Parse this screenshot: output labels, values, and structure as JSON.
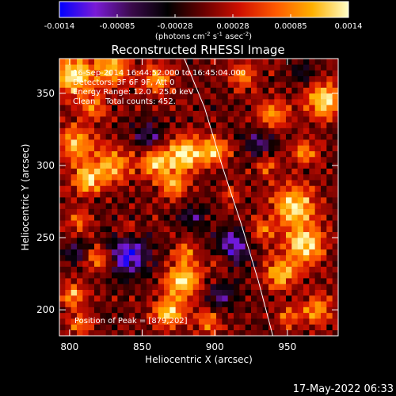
{
  "chart_data": {
    "type": "heatmap",
    "title": "Reconstructed RHESSI Image",
    "xlabel": "Heliocentric X (arcsec)",
    "ylabel": "Heliocentric Y (arcsec)",
    "xlim": [
      793,
      985
    ],
    "ylim": [
      182,
      374
    ],
    "xticks": [
      800,
      850,
      900,
      950
    ],
    "yticks": [
      200,
      250,
      300,
      350
    ],
    "colorbar": {
      "min": -0.0014,
      "max": 0.0014,
      "ticks": [
        "-0.0014",
        "-0.00085",
        "-0.00028",
        "0.00028",
        "0.00085",
        "0.0014"
      ],
      "label_parts": [
        "(photons cm",
        "-2",
        " s",
        "-1",
        " asec",
        "-2",
        ")"
      ],
      "colors": [
        "#0000ff",
        "#7a1bd6",
        "#3a0a4a",
        "#000000",
        "#6a0000",
        "#d01000",
        "#ff5a00",
        "#ffb000",
        "#ffffc8"
      ]
    },
    "annotations": [
      "16-Sep-2014 16:44:52.000 to 16:45:04.000",
      "Detectors: 3F 6F 9F, Att 0",
      "Energy Range: 12.0 - 25.0 keV",
      "Clean    Total counts: 452.",
      "Position of Peak = [879,202]"
    ],
    "peak": [
      879,
      202
    ],
    "limb_curve": [
      [
        879,
        374
      ],
      [
        893,
        340
      ],
      [
        905,
        300
      ],
      [
        918,
        260
      ],
      [
        930,
        220
      ],
      [
        940,
        182
      ]
    ],
    "emission_blobs": [
      [
        803,
        362,
        14,
        0.95
      ],
      [
        830,
        368,
        12,
        0.8
      ],
      [
        860,
        360,
        10,
        0.7
      ],
      [
        817,
        340,
        9,
        0.6
      ],
      [
        805,
        315,
        12,
        0.85
      ],
      [
        812,
        290,
        10,
        0.9
      ],
      [
        830,
        300,
        12,
        0.75
      ],
      [
        860,
        302,
        11,
        0.85
      ],
      [
        880,
        308,
        12,
        1.0
      ],
      [
        900,
        310,
        9,
        0.8
      ],
      [
        872,
        286,
        9,
        0.7
      ],
      [
        805,
        262,
        8,
        0.55
      ],
      [
        820,
        235,
        9,
        0.7
      ],
      [
        802,
        210,
        8,
        0.75
      ],
      [
        808,
        190,
        8,
        0.6
      ],
      [
        878,
        220,
        12,
        1.0
      ],
      [
        868,
        198,
        10,
        0.95
      ],
      [
        895,
        192,
        8,
        0.6
      ],
      [
        880,
        240,
        8,
        0.5
      ],
      [
        955,
        272,
        14,
        0.95
      ],
      [
        962,
        245,
        13,
        1.0
      ],
      [
        945,
        225,
        11,
        0.8
      ],
      [
        932,
        255,
        8,
        0.55
      ],
      [
        970,
        200,
        10,
        0.7
      ],
      [
        950,
        195,
        8,
        0.5
      ],
      [
        975,
        345,
        12,
        0.95
      ],
      [
        940,
        335,
        10,
        0.7
      ],
      [
        920,
        362,
        9,
        0.6
      ],
      [
        962,
        310,
        9,
        0.6
      ],
      [
        912,
        280,
        7,
        0.45
      ],
      [
        840,
        255,
        7,
        0.35
      ],
      [
        905,
        235,
        8,
        0.45
      ],
      [
        935,
        300,
        8,
        0.5
      ]
    ],
    "negative_blobs": [
      [
        840,
        238,
        14,
        0.9
      ],
      [
        912,
        243,
        12,
        0.85
      ],
      [
        855,
        320,
        10,
        0.6
      ],
      [
        905,
        210,
        9,
        0.55
      ],
      [
        930,
        315,
        10,
        0.55
      ],
      [
        885,
        265,
        9,
        0.45
      ],
      [
        805,
        240,
        8,
        0.5
      ],
      [
        960,
        365,
        8,
        0.4
      ]
    ]
  },
  "timestamp": "17-May-2022 06:33"
}
